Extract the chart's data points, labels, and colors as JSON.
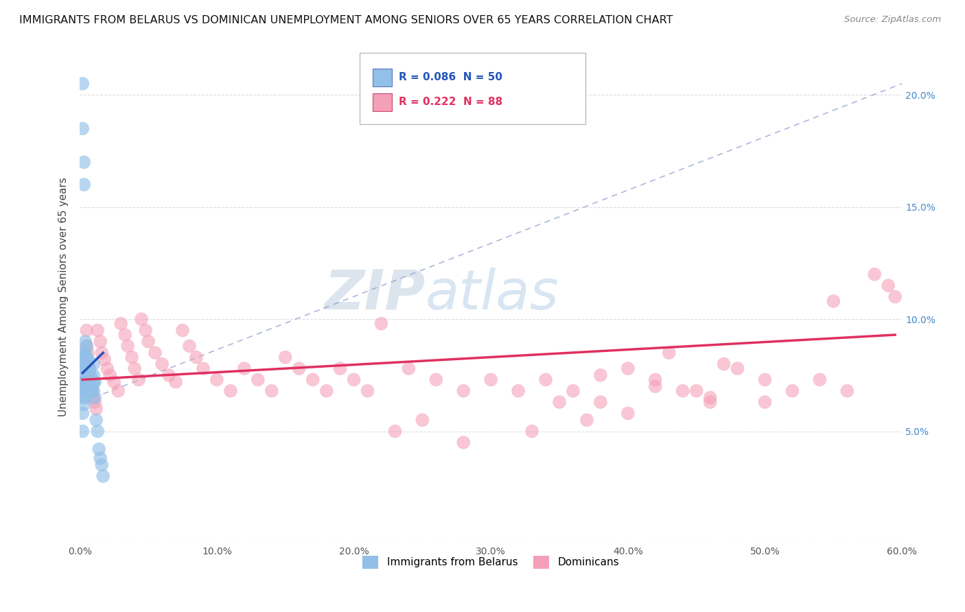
{
  "title": "IMMIGRANTS FROM BELARUS VS DOMINICAN UNEMPLOYMENT AMONG SENIORS OVER 65 YEARS CORRELATION CHART",
  "source": "Source: ZipAtlas.com",
  "ylabel": "Unemployment Among Seniors over 65 years",
  "xlim": [
    0,
    0.6
  ],
  "ylim": [
    0,
    0.22
  ],
  "xticks": [
    0.0,
    0.1,
    0.2,
    0.3,
    0.4,
    0.5,
    0.6
  ],
  "xticklabels": [
    "0.0%",
    "10.0%",
    "20.0%",
    "30.0%",
    "40.0%",
    "50.0%",
    "60.0%"
  ],
  "yticks": [
    0.0,
    0.05,
    0.1,
    0.15,
    0.2
  ],
  "yticklabels_left": [
    "",
    "",
    "",
    "",
    ""
  ],
  "yticklabels_right": [
    "",
    "5.0%",
    "10.0%",
    "15.0%",
    "20.0%"
  ],
  "blue_color": "#92C0E8",
  "pink_color": "#F4A0B8",
  "trend_blue": "#2255BB",
  "trend_pink": "#E03060",
  "watermark_zip": "ZIP",
  "watermark_atlas": "atlas",
  "blue_scatter_x": [
    0.002,
    0.002,
    0.002,
    0.002,
    0.003,
    0.003,
    0.003,
    0.003,
    0.003,
    0.003,
    0.003,
    0.003,
    0.003,
    0.004,
    0.004,
    0.004,
    0.004,
    0.004,
    0.004,
    0.004,
    0.004,
    0.005,
    0.005,
    0.005,
    0.005,
    0.005,
    0.006,
    0.006,
    0.006,
    0.006,
    0.007,
    0.007,
    0.007,
    0.008,
    0.008,
    0.008,
    0.009,
    0.009,
    0.01,
    0.01,
    0.01,
    0.01,
    0.011,
    0.011,
    0.012,
    0.013,
    0.014,
    0.015,
    0.016,
    0.017
  ],
  "blue_scatter_y": [
    0.205,
    0.185,
    0.058,
    0.05,
    0.17,
    0.16,
    0.085,
    0.082,
    0.078,
    0.072,
    0.068,
    0.065,
    0.062,
    0.09,
    0.085,
    0.08,
    0.075,
    0.072,
    0.07,
    0.068,
    0.065,
    0.088,
    0.083,
    0.078,
    0.073,
    0.07,
    0.082,
    0.078,
    0.074,
    0.07,
    0.078,
    0.075,
    0.072,
    0.075,
    0.072,
    0.068,
    0.072,
    0.068,
    0.08,
    0.075,
    0.072,
    0.068,
    0.072,
    0.065,
    0.055,
    0.05,
    0.042,
    0.038,
    0.035,
    0.03
  ],
  "pink_scatter_x": [
    0.002,
    0.003,
    0.004,
    0.005,
    0.005,
    0.006,
    0.006,
    0.007,
    0.007,
    0.008,
    0.009,
    0.01,
    0.01,
    0.011,
    0.012,
    0.013,
    0.015,
    0.016,
    0.018,
    0.02,
    0.022,
    0.025,
    0.028,
    0.03,
    0.033,
    0.035,
    0.038,
    0.04,
    0.043,
    0.045,
    0.048,
    0.05,
    0.055,
    0.06,
    0.065,
    0.07,
    0.075,
    0.08,
    0.085,
    0.09,
    0.1,
    0.11,
    0.12,
    0.13,
    0.14,
    0.15,
    0.16,
    0.17,
    0.18,
    0.19,
    0.2,
    0.21,
    0.22,
    0.24,
    0.26,
    0.28,
    0.3,
    0.32,
    0.34,
    0.36,
    0.38,
    0.4,
    0.42,
    0.44,
    0.46,
    0.48,
    0.5,
    0.52,
    0.54,
    0.56,
    0.58,
    0.59,
    0.595,
    0.35,
    0.4,
    0.45,
    0.5,
    0.55,
    0.43,
    0.47,
    0.38,
    0.42,
    0.46,
    0.37,
    0.33,
    0.28,
    0.25,
    0.23
  ],
  "pink_scatter_y": [
    0.075,
    0.082,
    0.07,
    0.095,
    0.088,
    0.085,
    0.08,
    0.078,
    0.073,
    0.07,
    0.068,
    0.065,
    0.072,
    0.063,
    0.06,
    0.095,
    0.09,
    0.085,
    0.082,
    0.078,
    0.075,
    0.072,
    0.068,
    0.098,
    0.093,
    0.088,
    0.083,
    0.078,
    0.073,
    0.1,
    0.095,
    0.09,
    0.085,
    0.08,
    0.075,
    0.072,
    0.095,
    0.088,
    0.083,
    0.078,
    0.073,
    0.068,
    0.078,
    0.073,
    0.068,
    0.083,
    0.078,
    0.073,
    0.068,
    0.078,
    0.073,
    0.068,
    0.098,
    0.078,
    0.073,
    0.068,
    0.073,
    0.068,
    0.073,
    0.068,
    0.063,
    0.078,
    0.073,
    0.068,
    0.063,
    0.078,
    0.073,
    0.068,
    0.073,
    0.068,
    0.12,
    0.115,
    0.11,
    0.063,
    0.058,
    0.068,
    0.063,
    0.108,
    0.085,
    0.08,
    0.075,
    0.07,
    0.065,
    0.055,
    0.05,
    0.045,
    0.055,
    0.05
  ],
  "blue_trend_x": [
    0.002,
    0.017
  ],
  "blue_trend_y": [
    0.076,
    0.085
  ],
  "pink_trend_x": [
    0.002,
    0.595
  ],
  "pink_trend_y": [
    0.073,
    0.093
  ]
}
